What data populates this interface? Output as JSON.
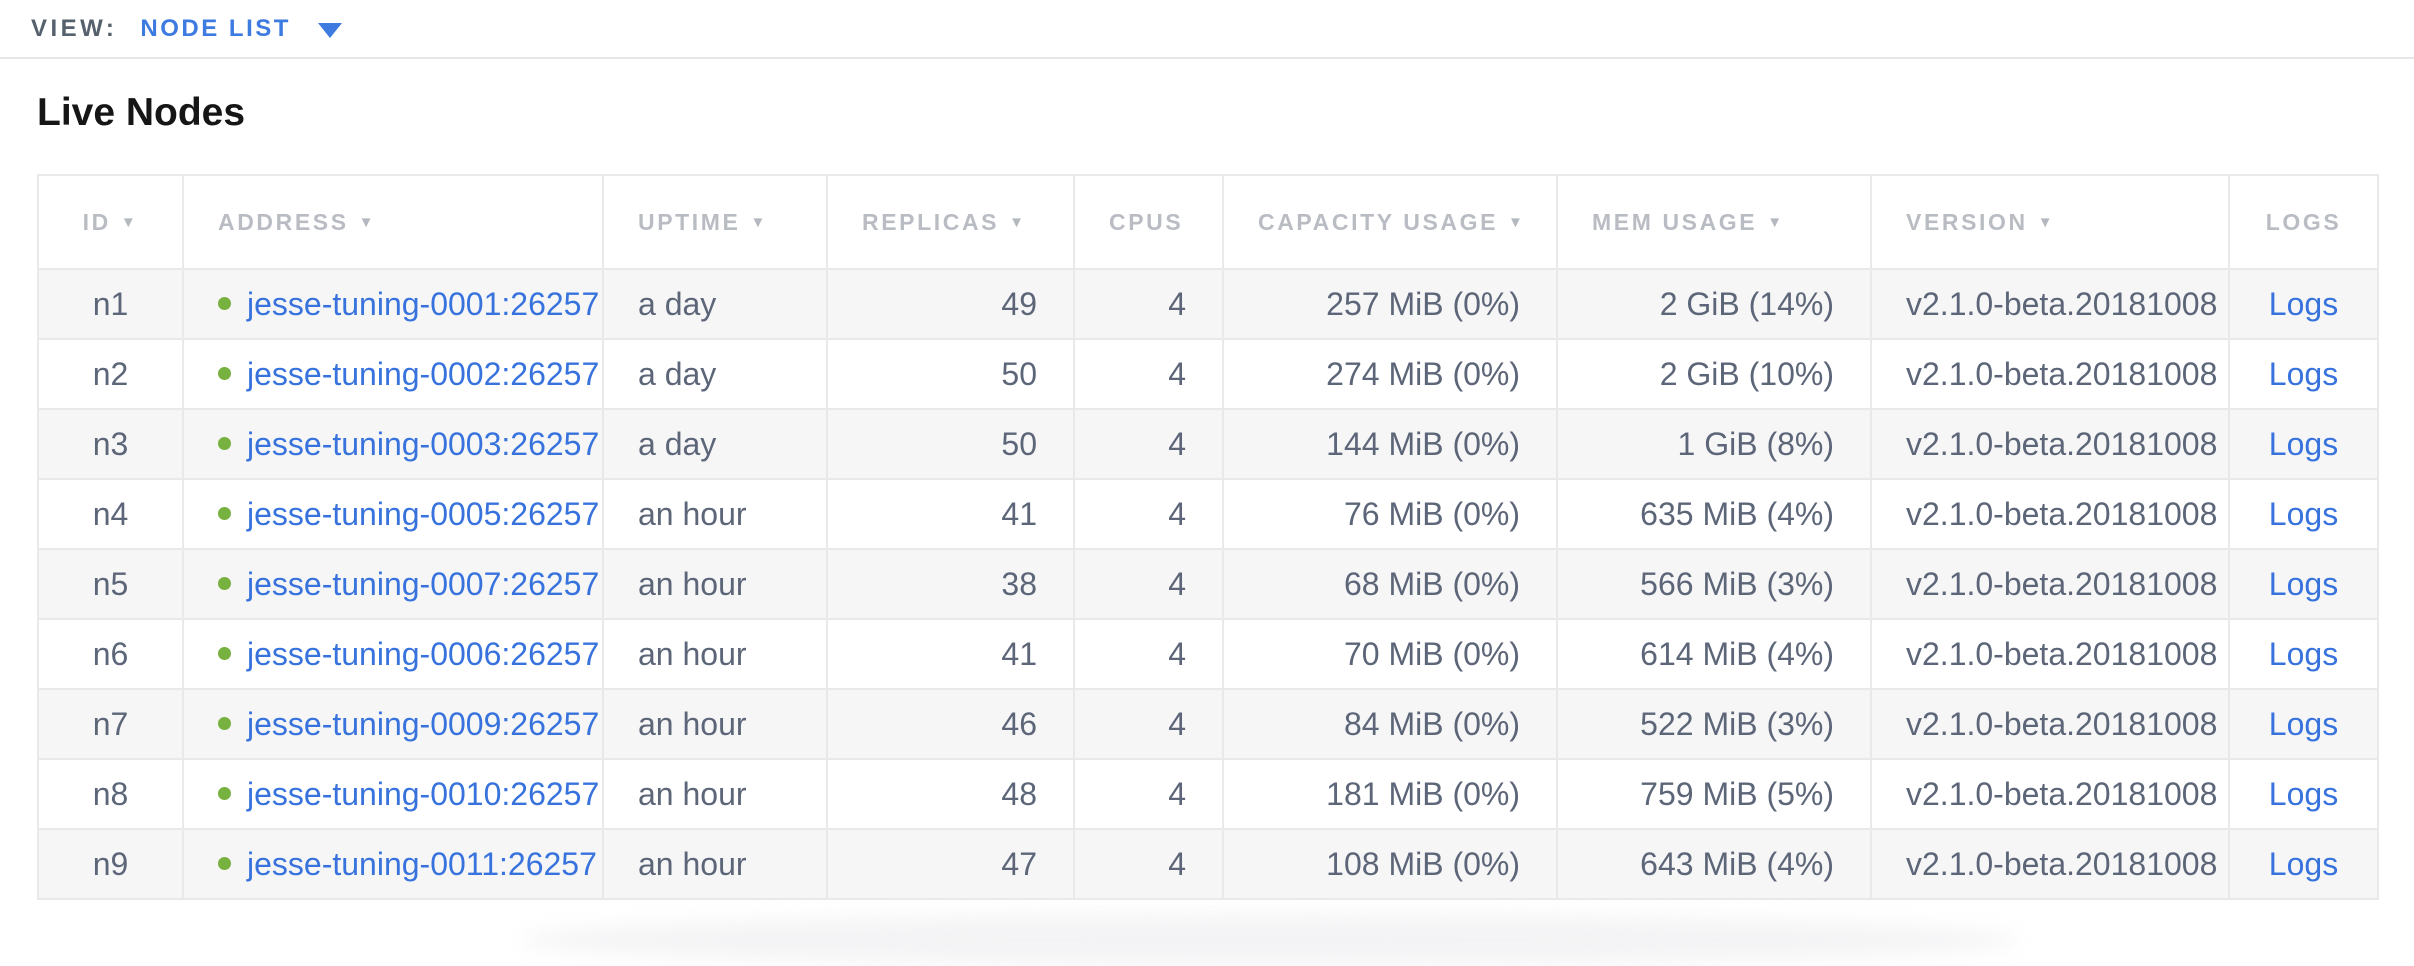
{
  "view_bar": {
    "label": "VIEW:",
    "selected_view": "NODE LIST"
  },
  "page_title": "Live Nodes",
  "colors": {
    "accent_blue": "#3d7be0",
    "link_blue": "#3873dd",
    "healthy_green": "#77b13f",
    "header_gray": "#b9bdc3",
    "body_slate": "#5c6678",
    "row_stripe": "#f6f6f7"
  },
  "icons": {
    "dropdown_caret": "caret-down",
    "sort_descending": "▼",
    "node_status": "green-dot"
  },
  "table": {
    "columns": [
      {
        "key": "id",
        "label": "ID",
        "sortable": true,
        "header_align": "center",
        "cell_align": "center"
      },
      {
        "key": "address",
        "label": "ADDRESS",
        "sortable": true,
        "header_align": "left",
        "cell_align": "left"
      },
      {
        "key": "uptime",
        "label": "UPTIME",
        "sortable": true,
        "header_align": "left",
        "cell_align": "left"
      },
      {
        "key": "replicas",
        "label": "REPLICAS",
        "sortable": true,
        "header_align": "left",
        "cell_align": "right"
      },
      {
        "key": "cpus",
        "label": "CPUS",
        "sortable": false,
        "header_align": "left",
        "cell_align": "right"
      },
      {
        "key": "capacity",
        "label": "CAPACITY USAGE",
        "sortable": true,
        "header_align": "left",
        "cell_align": "right"
      },
      {
        "key": "mem",
        "label": "MEM USAGE",
        "sortable": true,
        "header_align": "left",
        "cell_align": "right"
      },
      {
        "key": "version",
        "label": "VERSION",
        "sortable": true,
        "header_align": "left",
        "cell_align": "left"
      },
      {
        "key": "logs",
        "label": "LOGS",
        "sortable": false,
        "header_align": "center",
        "cell_align": "center"
      }
    ],
    "rows": [
      {
        "id": "n1",
        "status": "healthy",
        "address": "jesse-tuning-0001:26257",
        "uptime": "a day",
        "replicas": "49",
        "cpus": "4",
        "capacity": "257 MiB (0%)",
        "mem": "2 GiB (14%)",
        "version": "v2.1.0-beta.20181008",
        "logs": "Logs"
      },
      {
        "id": "n2",
        "status": "healthy",
        "address": "jesse-tuning-0002:26257",
        "uptime": "a day",
        "replicas": "50",
        "cpus": "4",
        "capacity": "274 MiB (0%)",
        "mem": "2 GiB (10%)",
        "version": "v2.1.0-beta.20181008",
        "logs": "Logs"
      },
      {
        "id": "n3",
        "status": "healthy",
        "address": "jesse-tuning-0003:26257",
        "uptime": "a day",
        "replicas": "50",
        "cpus": "4",
        "capacity": "144 MiB (0%)",
        "mem": "1 GiB (8%)",
        "version": "v2.1.0-beta.20181008",
        "logs": "Logs"
      },
      {
        "id": "n4",
        "status": "healthy",
        "address": "jesse-tuning-0005:26257",
        "uptime": "an hour",
        "replicas": "41",
        "cpus": "4",
        "capacity": "76 MiB (0%)",
        "mem": "635 MiB (4%)",
        "version": "v2.1.0-beta.20181008",
        "logs": "Logs"
      },
      {
        "id": "n5",
        "status": "healthy",
        "address": "jesse-tuning-0007:26257",
        "uptime": "an hour",
        "replicas": "38",
        "cpus": "4",
        "capacity": "68 MiB (0%)",
        "mem": "566 MiB (3%)",
        "version": "v2.1.0-beta.20181008",
        "logs": "Logs"
      },
      {
        "id": "n6",
        "status": "healthy",
        "address": "jesse-tuning-0006:26257",
        "uptime": "an hour",
        "replicas": "41",
        "cpus": "4",
        "capacity": "70 MiB (0%)",
        "mem": "614 MiB (4%)",
        "version": "v2.1.0-beta.20181008",
        "logs": "Logs"
      },
      {
        "id": "n7",
        "status": "healthy",
        "address": "jesse-tuning-0009:26257",
        "uptime": "an hour",
        "replicas": "46",
        "cpus": "4",
        "capacity": "84 MiB (0%)",
        "mem": "522 MiB (3%)",
        "version": "v2.1.0-beta.20181008",
        "logs": "Logs"
      },
      {
        "id": "n8",
        "status": "healthy",
        "address": "jesse-tuning-0010:26257",
        "uptime": "an hour",
        "replicas": "48",
        "cpus": "4",
        "capacity": "181 MiB (0%)",
        "mem": "759 MiB (5%)",
        "version": "v2.1.0-beta.20181008",
        "logs": "Logs"
      },
      {
        "id": "n9",
        "status": "healthy",
        "address": "jesse-tuning-0011:26257",
        "uptime": "an hour",
        "replicas": "47",
        "cpus": "4",
        "capacity": "108 MiB (0%)",
        "mem": "643 MiB (4%)",
        "version": "v2.1.0-beta.20181008",
        "logs": "Logs"
      }
    ]
  }
}
